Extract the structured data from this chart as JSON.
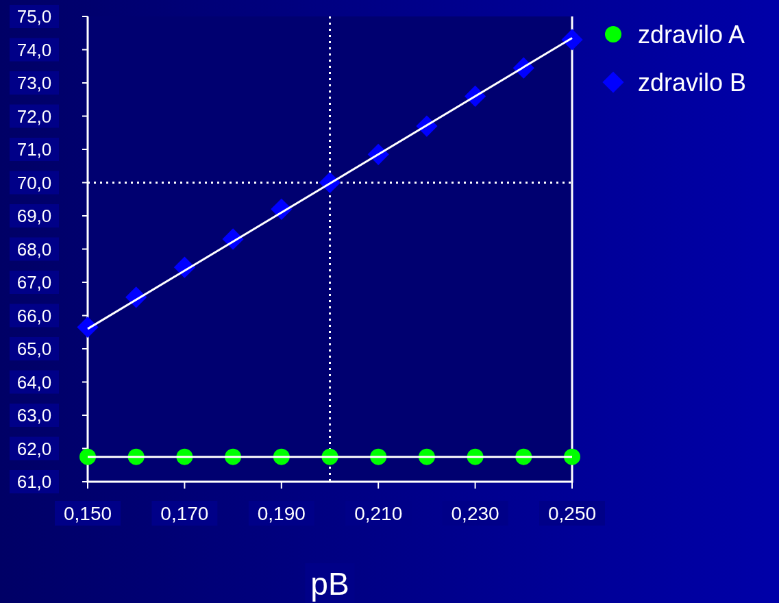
{
  "chart_data": {
    "type": "scatter",
    "xlabel": "pB",
    "xlim": [
      0.15,
      0.25
    ],
    "ylim": [
      61,
      75
    ],
    "xticks": [
      {
        "value": 0.15,
        "label": "0,150"
      },
      {
        "value": 0.17,
        "label": "0,170"
      },
      {
        "value": 0.19,
        "label": "0,190"
      },
      {
        "value": 0.21,
        "label": "0,210"
      },
      {
        "value": 0.23,
        "label": "0,230"
      },
      {
        "value": 0.25,
        "label": "0,250"
      }
    ],
    "yticks": [
      {
        "value": 61,
        "label": "61,0"
      },
      {
        "value": 62,
        "label": "62,0"
      },
      {
        "value": 63,
        "label": "63,0"
      },
      {
        "value": 64,
        "label": "64,0"
      },
      {
        "value": 65,
        "label": "65,0"
      },
      {
        "value": 66,
        "label": "66,0"
      },
      {
        "value": 67,
        "label": "67,0"
      },
      {
        "value": 68,
        "label": "68,0"
      },
      {
        "value": 69,
        "label": "69,0"
      },
      {
        "value": 70,
        "label": "70,0"
      },
      {
        "value": 71,
        "label": "71,0"
      },
      {
        "value": 72,
        "label": "72,0"
      },
      {
        "value": 73,
        "label": "73,0"
      },
      {
        "value": 74,
        "label": "74,0"
      },
      {
        "value": 75,
        "label": "75,0"
      }
    ],
    "legend": "top right",
    "x": [
      0.15,
      0.16,
      0.17,
      0.18,
      0.19,
      0.2,
      0.21,
      0.22,
      0.23,
      0.24,
      0.25
    ],
    "series": [
      {
        "type": "line",
        "color": "#ffffff",
        "values": [
          61.75,
          61.75,
          61.75,
          61.75,
          61.75,
          61.75,
          61.75,
          61.75,
          61.75,
          61.75,
          61.75
        ],
        "marker": "none"
      },
      {
        "type": "line",
        "color": "#ffffff",
        "x": [
          0.15,
          0.25
        ],
        "values": [
          65.6,
          74.35
        ],
        "marker": "none"
      },
      {
        "name": "zdravilo A",
        "color": "#00ff00",
        "marker": "circle",
        "values": [
          61.75,
          61.75,
          61.75,
          61.75,
          61.75,
          61.75,
          61.75,
          61.75,
          61.75,
          61.75,
          61.75
        ]
      },
      {
        "name": "zdravilo B",
        "color": "#0000ff",
        "marker": "diamond",
        "values": [
          65.65,
          66.55,
          67.45,
          68.3,
          69.2,
          70.0,
          70.85,
          71.7,
          72.6,
          73.45,
          74.3
        ]
      }
    ],
    "ref_lines": [
      {
        "axis": "x",
        "value": 0.2,
        "label": null,
        "color": "#ffffff",
        "line_style": "dotted"
      },
      {
        "axis": "y",
        "value": 70,
        "label": null,
        "color": "#ffffff",
        "line_style": "dotted"
      }
    ]
  }
}
